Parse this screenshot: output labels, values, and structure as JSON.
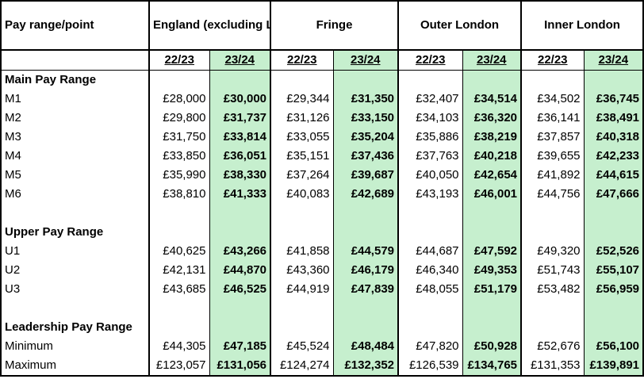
{
  "header": {
    "corner": "Pay range/point",
    "regions": [
      "England (excluding London and Fringe)",
      "Fringe",
      "Outer London",
      "Inner London"
    ],
    "years": [
      "22/23",
      "23/24"
    ]
  },
  "sections": [
    {
      "title": "Main Pay Range",
      "rows": [
        {
          "label": "M1",
          "values": [
            "£28,000",
            "£30,000",
            "£29,344",
            "£31,350",
            "£32,407",
            "£34,514",
            "£34,502",
            "£36,745"
          ]
        },
        {
          "label": "M2",
          "values": [
            "£29,800",
            "£31,737",
            "£31,126",
            "£33,150",
            "£34,103",
            "£36,320",
            "£36,141",
            "£38,491"
          ]
        },
        {
          "label": "M3",
          "values": [
            "£31,750",
            "£33,814",
            "£33,055",
            "£35,204",
            "£35,886",
            "£38,219",
            "£37,857",
            "£40,318"
          ]
        },
        {
          "label": "M4",
          "values": [
            "£33,850",
            "£36,051",
            "£35,151",
            "£37,436",
            "£37,763",
            "£40,218",
            "£39,655",
            "£42,233"
          ]
        },
        {
          "label": "M5",
          "values": [
            "£35,990",
            "£38,330",
            "£37,264",
            "£39,687",
            "£40,050",
            "£42,654",
            "£41,892",
            "£44,615"
          ]
        },
        {
          "label": "M6",
          "values": [
            "£38,810",
            "£41,333",
            "£40,083",
            "£42,689",
            "£43,193",
            "£46,001",
            "£44,756",
            "£47,666"
          ]
        }
      ]
    },
    {
      "title": "Upper Pay Range",
      "rows": [
        {
          "label": "U1",
          "values": [
            "£40,625",
            "£43,266",
            "£41,858",
            "£44,579",
            "£44,687",
            "£47,592",
            "£49,320",
            "£52,526"
          ]
        },
        {
          "label": "U2",
          "values": [
            "£42,131",
            "£44,870",
            "£43,360",
            "£46,179",
            "£46,340",
            "£49,353",
            "£51,743",
            "£55,107"
          ]
        },
        {
          "label": "U3",
          "values": [
            "£43,685",
            "£46,525",
            "£44,919",
            "£47,839",
            "£48,055",
            "£51,179",
            "£53,482",
            "£56,959"
          ]
        }
      ]
    },
    {
      "title": "Leadership Pay Range",
      "rows": [
        {
          "label": "Minimum",
          "values": [
            "£44,305",
            "£47,185",
            "£45,524",
            "£48,484",
            "£47,820",
            "£50,928",
            "£52,676",
            "£56,100"
          ]
        },
        {
          "label": "Maximum",
          "values": [
            "£123,057",
            "£131,056",
            "£124,274",
            "£132,352",
            "£126,539",
            "£134,765",
            "£131,353",
            "£139,891"
          ]
        }
      ]
    }
  ],
  "colors": {
    "highlight": "#c6efce",
    "border": "#000000"
  }
}
